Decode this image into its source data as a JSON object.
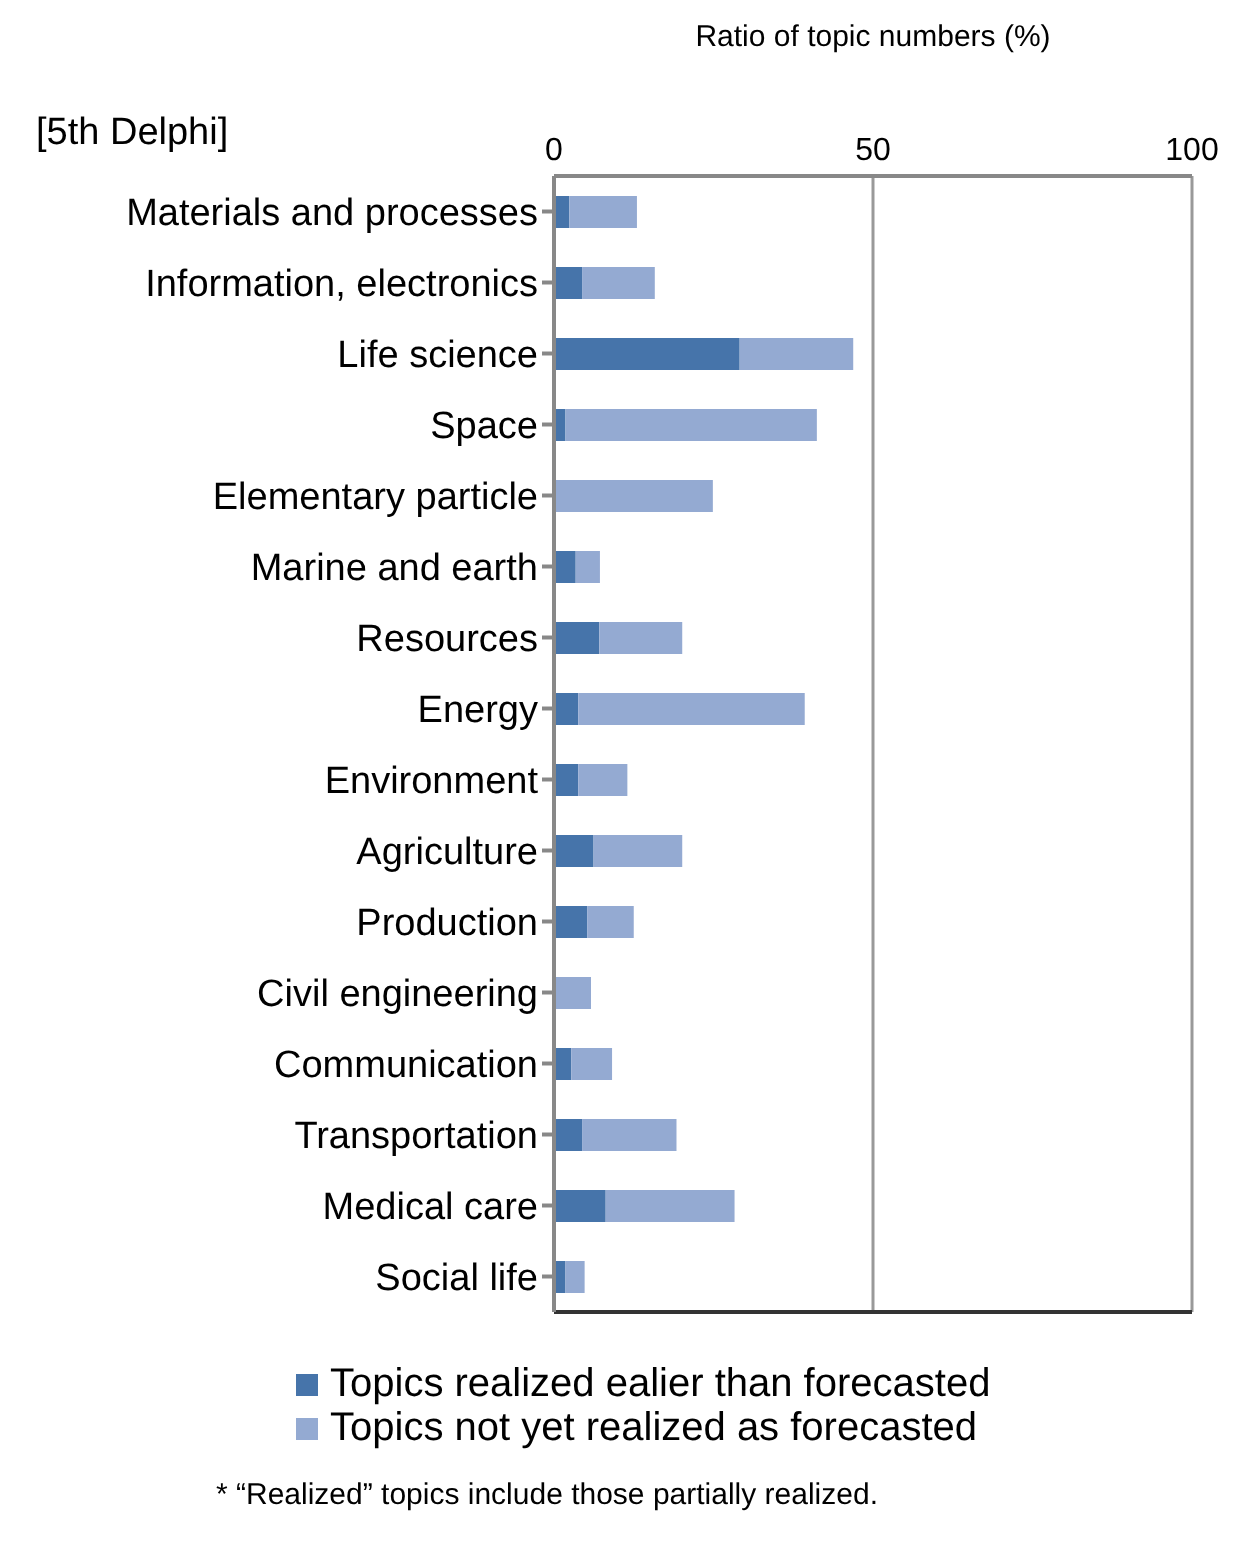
{
  "chart_data": {
    "type": "bar",
    "orientation": "horizontal",
    "stacked": true,
    "xlabel": "Ratio of topic numbers (%)",
    "categories": [
      "Materials and processes",
      "Information, electronics",
      "Life science",
      "Space",
      "Elementary particle",
      "Marine and earth",
      "Resources",
      "Energy",
      "Environment",
      "Agriculture",
      "Production",
      "Civil engineering",
      "Communication",
      "Transportation",
      "Medical care",
      "Social life"
    ],
    "series": [
      {
        "name": "Topics realized ealier than forecasted",
        "color": "#4674aa",
        "values": [
          2.4,
          4.4,
          29.1,
          1.8,
          0,
          3.4,
          7.1,
          3.8,
          3.8,
          6.2,
          5.2,
          0,
          2.7,
          4.4,
          8.1,
          1.8
        ]
      },
      {
        "name": "Topics not yet realized as forecasted",
        "color": "#94aad2",
        "values": [
          10.6,
          11.4,
          17.8,
          39.4,
          24.9,
          3.8,
          13.0,
          35.5,
          7.7,
          13.9,
          7.3,
          5.8,
          6.4,
          14.8,
          20.2,
          3.0
        ]
      }
    ],
    "xlim": [
      0,
      100
    ],
    "xticks": [
      0,
      50,
      100
    ],
    "grid": "x",
    "legend": "bottom",
    "annotations": [
      "[5th Delphi]",
      "* “Realized” topics include those partially realized."
    ]
  }
}
